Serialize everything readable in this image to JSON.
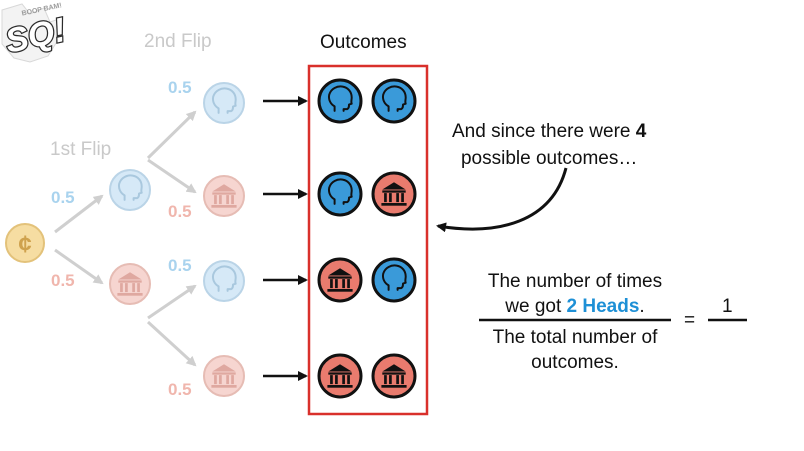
{
  "logo": {
    "text": "SQ!",
    "small_text": "BOOP BAM!"
  },
  "labels": {
    "first_flip": "1st Flip",
    "second_flip": "2nd Flip",
    "outcomes": "Outcomes"
  },
  "coin_symbol": "¢",
  "probabilities": {
    "first_heads": "0.5",
    "first_tails": "0.5",
    "h_heads": "0.5",
    "h_tails": "0.5",
    "t_heads": "0.5",
    "t_tails": "0.5"
  },
  "outcomes": [
    {
      "first": "heads",
      "second": "heads"
    },
    {
      "first": "heads",
      "second": "tails"
    },
    {
      "first": "tails",
      "second": "heads"
    },
    {
      "first": "tails",
      "second": "tails"
    }
  ],
  "annotation": {
    "line1_pre": "And since there were ",
    "line1_num": "4",
    "line2": "possible outcomes…"
  },
  "fraction": {
    "num_line1": "The number of times",
    "num_line2_pre": "we got ",
    "num_line2_hl": "2 Heads",
    "num_line2_post": ".",
    "den_line1": "The total number of",
    "den_line2": "outcomes.",
    "equals": "=",
    "result_numerator": "1"
  },
  "colors": {
    "heads": "#3a9ad9",
    "tails": "#e97b6e",
    "coin": "#f2c662",
    "box": "#d9302b",
    "highlight": "#1e90d6"
  },
  "icons": {
    "heads": "head-silhouette-icon",
    "tails": "bank-building-icon",
    "coin": "coin-icon"
  }
}
